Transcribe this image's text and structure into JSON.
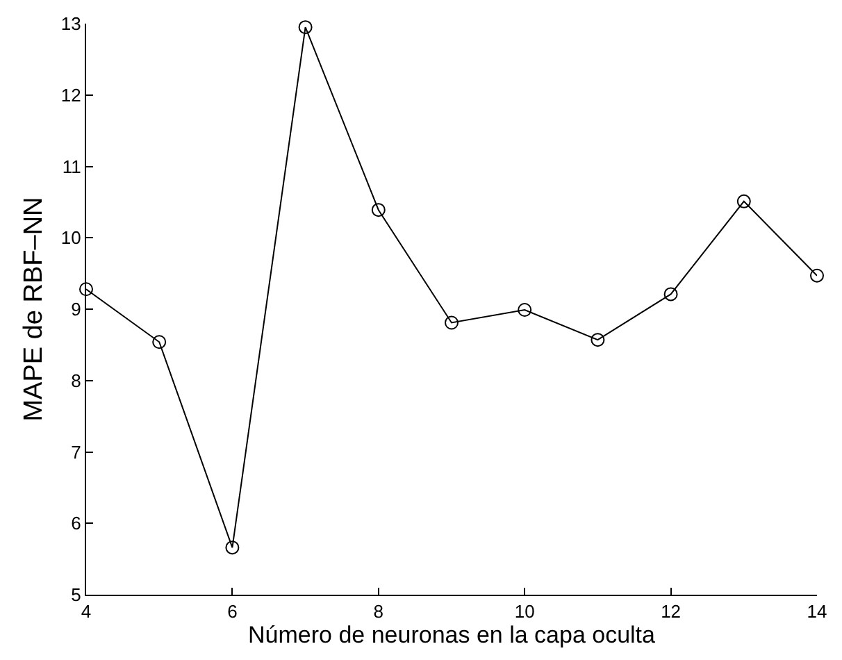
{
  "chart_data": {
    "type": "line",
    "xlabel": "Número de neuronas en la capa oculta",
    "ylabel": "MAPE de RBF–NN",
    "x": [
      4,
      5,
      6,
      7,
      8,
      9,
      10,
      11,
      12,
      13,
      14
    ],
    "series": [
      {
        "color": "#000000",
        "values": [
          9.28,
          8.54,
          5.66,
          12.95,
          10.39,
          8.81,
          8.99,
          8.57,
          9.21,
          10.51,
          9.47
        ]
      }
    ],
    "xlim": [
      4,
      14
    ],
    "xticks": [
      4,
      6,
      8,
      10,
      12,
      14
    ],
    "ylim": [
      5,
      13
    ],
    "yticks": [
      5,
      6,
      7,
      8,
      9,
      10,
      11,
      12,
      13
    ],
    "marker": "circle",
    "line_style": "solid",
    "grid": false
  }
}
